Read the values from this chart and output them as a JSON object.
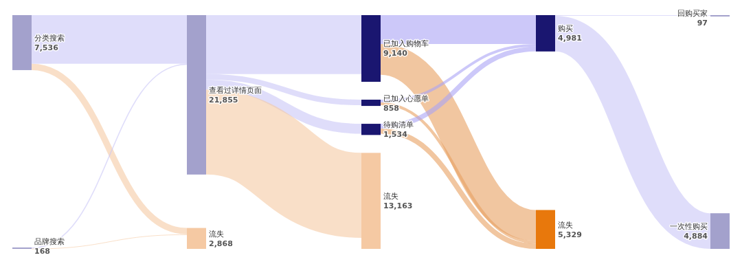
{
  "chart_data": {
    "type": "other",
    "categories": [
      "分类搜索",
      "品牌搜索",
      "查看过详情页面",
      "流失",
      "已加入购物车",
      "已加入心愿单",
      "待购清单",
      "流失",
      "购买",
      "流失",
      "回购买家",
      "一次性购买"
    ],
    "values": [
      7536,
      168,
      21855,
      2868,
      9140,
      858,
      1534,
      13163,
      4981,
      5329,
      97,
      4884
    ],
    "value_labels": [
      "7,536",
      "168",
      "21,855",
      "2,868",
      "9,140",
      "858",
      "1,534",
      "13,163",
      "4,981",
      "5,329",
      "97",
      "4,884"
    ],
    "colors": [
      "#a3a1cc",
      "#a3a1cc",
      "#a3a1cc",
      "#f5c9a3",
      "#1a1670",
      "#1a1670",
      "#1a1670",
      "#f5c9a3",
      "#1a1670",
      "#e8780c",
      "#a3a1cc",
      "#a3a1cc"
    ],
    "series": [
      {
        "values": [
          null,
          null,
          true,
          true,
          null,
          null,
          null,
          null,
          null,
          null,
          null,
          null
        ],
        "colors": [
          null,
          null,
          "#c9c6f7",
          "#f5c9a3",
          null,
          null,
          null,
          null,
          null,
          null,
          null,
          null
        ]
      },
      {
        "values": [
          null,
          null,
          true,
          true,
          null,
          null,
          null,
          null,
          null,
          null,
          null,
          null
        ],
        "colors": [
          null,
          null,
          "#c9c6f7",
          "#f5c9a3",
          null,
          null,
          null,
          null,
          null,
          null,
          null,
          null
        ]
      },
      {
        "values": [
          null,
          null,
          null,
          null,
          true,
          true,
          true,
          true,
          null,
          null,
          null,
          null
        ],
        "colors": [
          null,
          null,
          null,
          null,
          "#c9c6f7",
          "#c9c6f7",
          "#c9c6f7",
          "#f5c9a3",
          null,
          null,
          null,
          null
        ]
      },
      {
        "values": [
          null,
          null,
          null,
          null,
          null,
          null,
          null,
          null,
          null,
          null,
          null,
          null
        ]
      },
      {
        "values": [
          null,
          null,
          null,
          null,
          null,
          null,
          null,
          null,
          true,
          true,
          null,
          null
        ],
        "colors": [
          null,
          null,
          null,
          null,
          null,
          null,
          null,
          null,
          "#aaa4f5",
          "#e8a060",
          null,
          null
        ]
      },
      {
        "values": [
          null,
          null,
          null,
          null,
          null,
          null,
          null,
          null,
          true,
          true,
          null,
          null
        ],
        "colors": [
          null,
          null,
          null,
          null,
          null,
          null,
          null,
          null,
          "#aaa4f5",
          "#e8a060",
          null,
          null
        ]
      },
      {
        "values": [
          null,
          null,
          null,
          null,
          null,
          null,
          null,
          null,
          true,
          true,
          null,
          null
        ],
        "colors": [
          null,
          null,
          null,
          null,
          null,
          null,
          null,
          null,
          "#aaa4f5",
          "#e8a060",
          null,
          null
        ]
      },
      {
        "values": [
          null,
          null,
          null,
          null,
          null,
          null,
          null,
          null,
          null,
          null,
          null,
          null
        ]
      },
      {
        "values": [
          null,
          null,
          null,
          null,
          null,
          null,
          null,
          null,
          null,
          null,
          true,
          true
        ],
        "colors": [
          null,
          null,
          null,
          null,
          null,
          null,
          null,
          null,
          null,
          null,
          "#c9c6f7",
          "#c9c6f7"
        ]
      },
      {
        "values": [
          null,
          null,
          null,
          null,
          null,
          null,
          null,
          null,
          null,
          null,
          null,
          null
        ]
      },
      {
        "values": [
          null,
          null,
          null,
          null,
          null,
          null,
          null,
          null,
          null,
          null,
          null,
          null
        ]
      },
      {
        "values": [
          null,
          null,
          null,
          null,
          null,
          null,
          null,
          null,
          null,
          null,
          null,
          null
        ]
      }
    ]
  }
}
